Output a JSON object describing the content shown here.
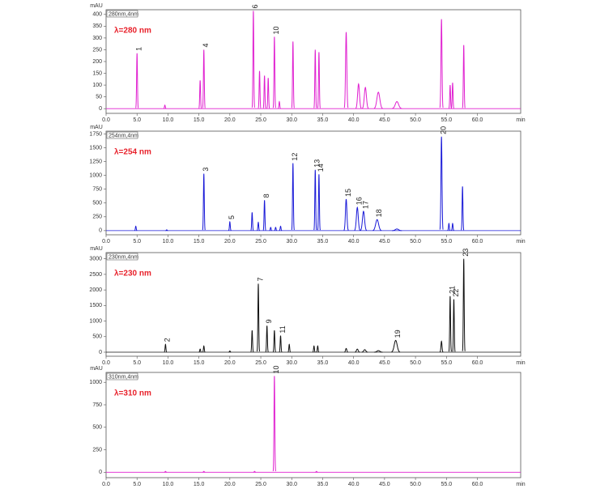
{
  "chart_data": [
    {
      "type": "chromatogram",
      "title": "λ=280 nm",
      "channel": "280nm,4nm",
      "ylabel": "mAU",
      "xlabel": "min",
      "color": "#e020d0",
      "xlim": [
        0,
        67
      ],
      "ylim": [
        -20,
        420
      ],
      "xticks": [
        {
          "value": 0,
          "label": "0.0"
        },
        {
          "value": 5,
          "label": "5.0"
        },
        {
          "value": 10,
          "label": "10.0"
        },
        {
          "value": 15,
          "label": "15.0"
        },
        {
          "value": 20,
          "label": "20.0"
        },
        {
          "value": 25,
          "label": "25.0"
        },
        {
          "value": 30,
          "label": "30.0"
        },
        {
          "value": 35,
          "label": "35.0"
        },
        {
          "value": 40,
          "label": "40.0"
        },
        {
          "value": 45,
          "label": "45.0"
        },
        {
          "value": 50,
          "label": "50.0"
        },
        {
          "value": 55,
          "label": "55.0"
        },
        {
          "value": 60,
          "label": "60.0"
        }
      ],
      "yticks": [
        0,
        50,
        100,
        150,
        200,
        250,
        300,
        350,
        400
      ],
      "peaks": [
        {
          "rt": 5.0,
          "height": 235,
          "width": 0.4,
          "label": "1"
        },
        {
          "rt": 9.5,
          "height": 15,
          "width": 0.4
        },
        {
          "rt": 15.2,
          "height": 120,
          "width": 0.4
        },
        {
          "rt": 15.8,
          "height": 250,
          "width": 0.4,
          "label": "4"
        },
        {
          "rt": 23.8,
          "height": 415,
          "width": 0.4,
          "label": "6"
        },
        {
          "rt": 24.8,
          "height": 160,
          "width": 0.4
        },
        {
          "rt": 25.6,
          "height": 140,
          "width": 0.4
        },
        {
          "rt": 26.2,
          "height": 130,
          "width": 0.4
        },
        {
          "rt": 27.2,
          "height": 305,
          "width": 0.4,
          "label": "10"
        },
        {
          "rt": 28.0,
          "height": 30,
          "width": 0.4
        },
        {
          "rt": 30.2,
          "height": 285,
          "width": 0.4
        },
        {
          "rt": 33.8,
          "height": 250,
          "width": 0.4
        },
        {
          "rt": 34.4,
          "height": 240,
          "width": 0.4
        },
        {
          "rt": 38.8,
          "height": 325,
          "width": 0.6
        },
        {
          "rt": 40.8,
          "height": 105,
          "width": 0.9
        },
        {
          "rt": 41.9,
          "height": 90,
          "width": 1.0
        },
        {
          "rt": 44.0,
          "height": 70,
          "width": 1.4
        },
        {
          "rt": 47.0,
          "height": 30,
          "width": 1.6
        },
        {
          "rt": 54.2,
          "height": 380,
          "width": 0.5
        },
        {
          "rt": 55.6,
          "height": 100,
          "width": 0.4
        },
        {
          "rt": 56.0,
          "height": 110,
          "width": 0.4
        },
        {
          "rt": 57.8,
          "height": 270,
          "width": 0.4
        }
      ]
    },
    {
      "type": "chromatogram",
      "title": "λ=254 nm",
      "channel": "254nm,4nm",
      "ylabel": "mAU",
      "xlabel": "min",
      "color": "#1a1ad8",
      "xlim": [
        0,
        67
      ],
      "ylim": [
        -75,
        1800
      ],
      "xticks": [
        {
          "value": 0,
          "label": "0.0"
        },
        {
          "value": 5,
          "label": "5.0"
        },
        {
          "value": 10,
          "label": "10.0"
        },
        {
          "value": 15,
          "label": "15.0"
        },
        {
          "value": 20,
          "label": "20.0"
        },
        {
          "value": 25,
          "label": "25.0"
        },
        {
          "value": 30,
          "label": "30.0"
        },
        {
          "value": 35,
          "label": "35.0"
        },
        {
          "value": 40,
          "label": "40.0"
        },
        {
          "value": 45,
          "label": "45.0"
        },
        {
          "value": 50,
          "label": "50.0"
        },
        {
          "value": 55,
          "label": "55.0"
        },
        {
          "value": 60,
          "label": "60.0"
        }
      ],
      "yticks": [
        0,
        250,
        500,
        750,
        1000,
        1250,
        1500,
        1750
      ],
      "peaks": [
        {
          "rt": 4.8,
          "height": 80,
          "width": 0.4
        },
        {
          "rt": 9.8,
          "height": 15,
          "width": 0.4
        },
        {
          "rt": 15.8,
          "height": 1030,
          "width": 0.4,
          "label": "3"
        },
        {
          "rt": 20.0,
          "height": 160,
          "width": 0.4,
          "label": "5"
        },
        {
          "rt": 23.6,
          "height": 330,
          "width": 0.4
        },
        {
          "rt": 24.6,
          "height": 150,
          "width": 0.4
        },
        {
          "rt": 25.6,
          "height": 550,
          "width": 0.4,
          "label": "8"
        },
        {
          "rt": 26.6,
          "height": 60,
          "width": 0.4
        },
        {
          "rt": 27.4,
          "height": 60,
          "width": 0.4
        },
        {
          "rt": 28.2,
          "height": 80,
          "width": 0.4
        },
        {
          "rt": 30.2,
          "height": 1220,
          "width": 0.4,
          "label": "12"
        },
        {
          "rt": 33.8,
          "height": 1100,
          "width": 0.4,
          "label": "13"
        },
        {
          "rt": 34.4,
          "height": 1020,
          "width": 0.4,
          "label": "14"
        },
        {
          "rt": 38.8,
          "height": 570,
          "width": 0.7,
          "label": "15"
        },
        {
          "rt": 40.6,
          "height": 420,
          "width": 0.9,
          "label": "16"
        },
        {
          "rt": 41.6,
          "height": 350,
          "width": 1.0,
          "label": "17"
        },
        {
          "rt": 43.8,
          "height": 200,
          "width": 1.4,
          "label": "18"
        },
        {
          "rt": 47.0,
          "height": 30,
          "width": 1.6
        },
        {
          "rt": 54.2,
          "height": 1700,
          "width": 0.5,
          "label": "20"
        },
        {
          "rt": 55.4,
          "height": 130,
          "width": 0.4
        },
        {
          "rt": 56.0,
          "height": 130,
          "width": 0.4
        },
        {
          "rt": 57.6,
          "height": 800,
          "width": 0.4
        }
      ]
    },
    {
      "type": "chromatogram",
      "title": "λ=230 nm",
      "channel": "230nm,4nm",
      "ylabel": "mAU",
      "xlabel": "min",
      "color": "#111111",
      "xlim": [
        0,
        67
      ],
      "ylim": [
        -130,
        3200
      ],
      "xticks": [
        {
          "value": 0,
          "label": "0.0"
        },
        {
          "value": 5,
          "label": "5.0"
        },
        {
          "value": 10,
          "label": "10.0"
        },
        {
          "value": 15,
          "label": "15.0"
        },
        {
          "value": 20,
          "label": "20.0"
        },
        {
          "value": 25,
          "label": "25.0"
        },
        {
          "value": 30,
          "label": "30.0"
        },
        {
          "value": 35,
          "label": "35.0"
        },
        {
          "value": 40,
          "label": "40.0"
        },
        {
          "value": 45,
          "label": "45.0"
        },
        {
          "value": 50,
          "label": "50.0"
        },
        {
          "value": 55,
          "label": "55.0"
        },
        {
          "value": 60,
          "label": "60.0"
        }
      ],
      "yticks": [
        0,
        500,
        1000,
        1500,
        2000,
        2500,
        3000
      ],
      "peaks": [
        {
          "rt": 9.6,
          "height": 250,
          "width": 0.4,
          "label": "2"
        },
        {
          "rt": 15.2,
          "height": 100,
          "width": 0.4
        },
        {
          "rt": 15.8,
          "height": 200,
          "width": 0.4
        },
        {
          "rt": 20.0,
          "height": 40,
          "width": 0.4
        },
        {
          "rt": 23.6,
          "height": 700,
          "width": 0.4
        },
        {
          "rt": 24.6,
          "height": 2200,
          "width": 0.4,
          "label": "7"
        },
        {
          "rt": 26.0,
          "height": 850,
          "width": 0.4,
          "label": "9"
        },
        {
          "rt": 27.2,
          "height": 700,
          "width": 0.4
        },
        {
          "rt": 28.2,
          "height": 530,
          "width": 0.4,
          "label": "11"
        },
        {
          "rt": 29.6,
          "height": 250,
          "width": 0.4
        },
        {
          "rt": 33.6,
          "height": 200,
          "width": 0.4
        },
        {
          "rt": 34.2,
          "height": 200,
          "width": 0.4
        },
        {
          "rt": 38.8,
          "height": 120,
          "width": 0.6
        },
        {
          "rt": 40.6,
          "height": 100,
          "width": 0.8
        },
        {
          "rt": 41.8,
          "height": 80,
          "width": 1.0
        },
        {
          "rt": 44.0,
          "height": 50,
          "width": 1.4
        },
        {
          "rt": 46.8,
          "height": 380,
          "width": 1.4,
          "label": "19"
        },
        {
          "rt": 54.2,
          "height": 350,
          "width": 0.5
        },
        {
          "rt": 55.6,
          "height": 1800,
          "width": 0.4,
          "label": "21"
        },
        {
          "rt": 56.2,
          "height": 1700,
          "width": 0.4,
          "label": "22"
        },
        {
          "rt": 57.8,
          "height": 3000,
          "width": 0.4,
          "label": "23"
        }
      ]
    },
    {
      "type": "chromatogram",
      "title": "λ=310 nm",
      "channel": "310nm,4nm",
      "ylabel": "mAU",
      "xlabel": "min",
      "color": "#e020d0",
      "xlim": [
        0,
        67
      ],
      "ylim": [
        -60,
        1110
      ],
      "xticks": [
        {
          "value": 0,
          "label": "0.0"
        },
        {
          "value": 5,
          "label": "5.0"
        },
        {
          "value": 10,
          "label": "10.0"
        },
        {
          "value": 15,
          "label": "15.0"
        },
        {
          "value": 20,
          "label": "20.0"
        },
        {
          "value": 25,
          "label": "25.0"
        },
        {
          "value": 30,
          "label": "30.0"
        },
        {
          "value": 35,
          "label": "35.0"
        },
        {
          "value": 40,
          "label": "40.0"
        },
        {
          "value": 45,
          "label": "45.0"
        },
        {
          "value": 50,
          "label": "50.0"
        },
        {
          "value": 55,
          "label": "55.0"
        },
        {
          "value": 60,
          "label": "60.0"
        }
      ],
      "yticks": [
        0,
        250,
        500,
        750,
        1000
      ],
      "peaks": [
        {
          "rt": 9.6,
          "height": 10,
          "width": 0.4
        },
        {
          "rt": 15.8,
          "height": 10,
          "width": 0.4
        },
        {
          "rt": 24.0,
          "height": 10,
          "width": 0.4
        },
        {
          "rt": 27.2,
          "height": 1070,
          "width": 0.4,
          "label": "10"
        },
        {
          "rt": 34.0,
          "height": 10,
          "width": 0.4
        }
      ]
    }
  ]
}
